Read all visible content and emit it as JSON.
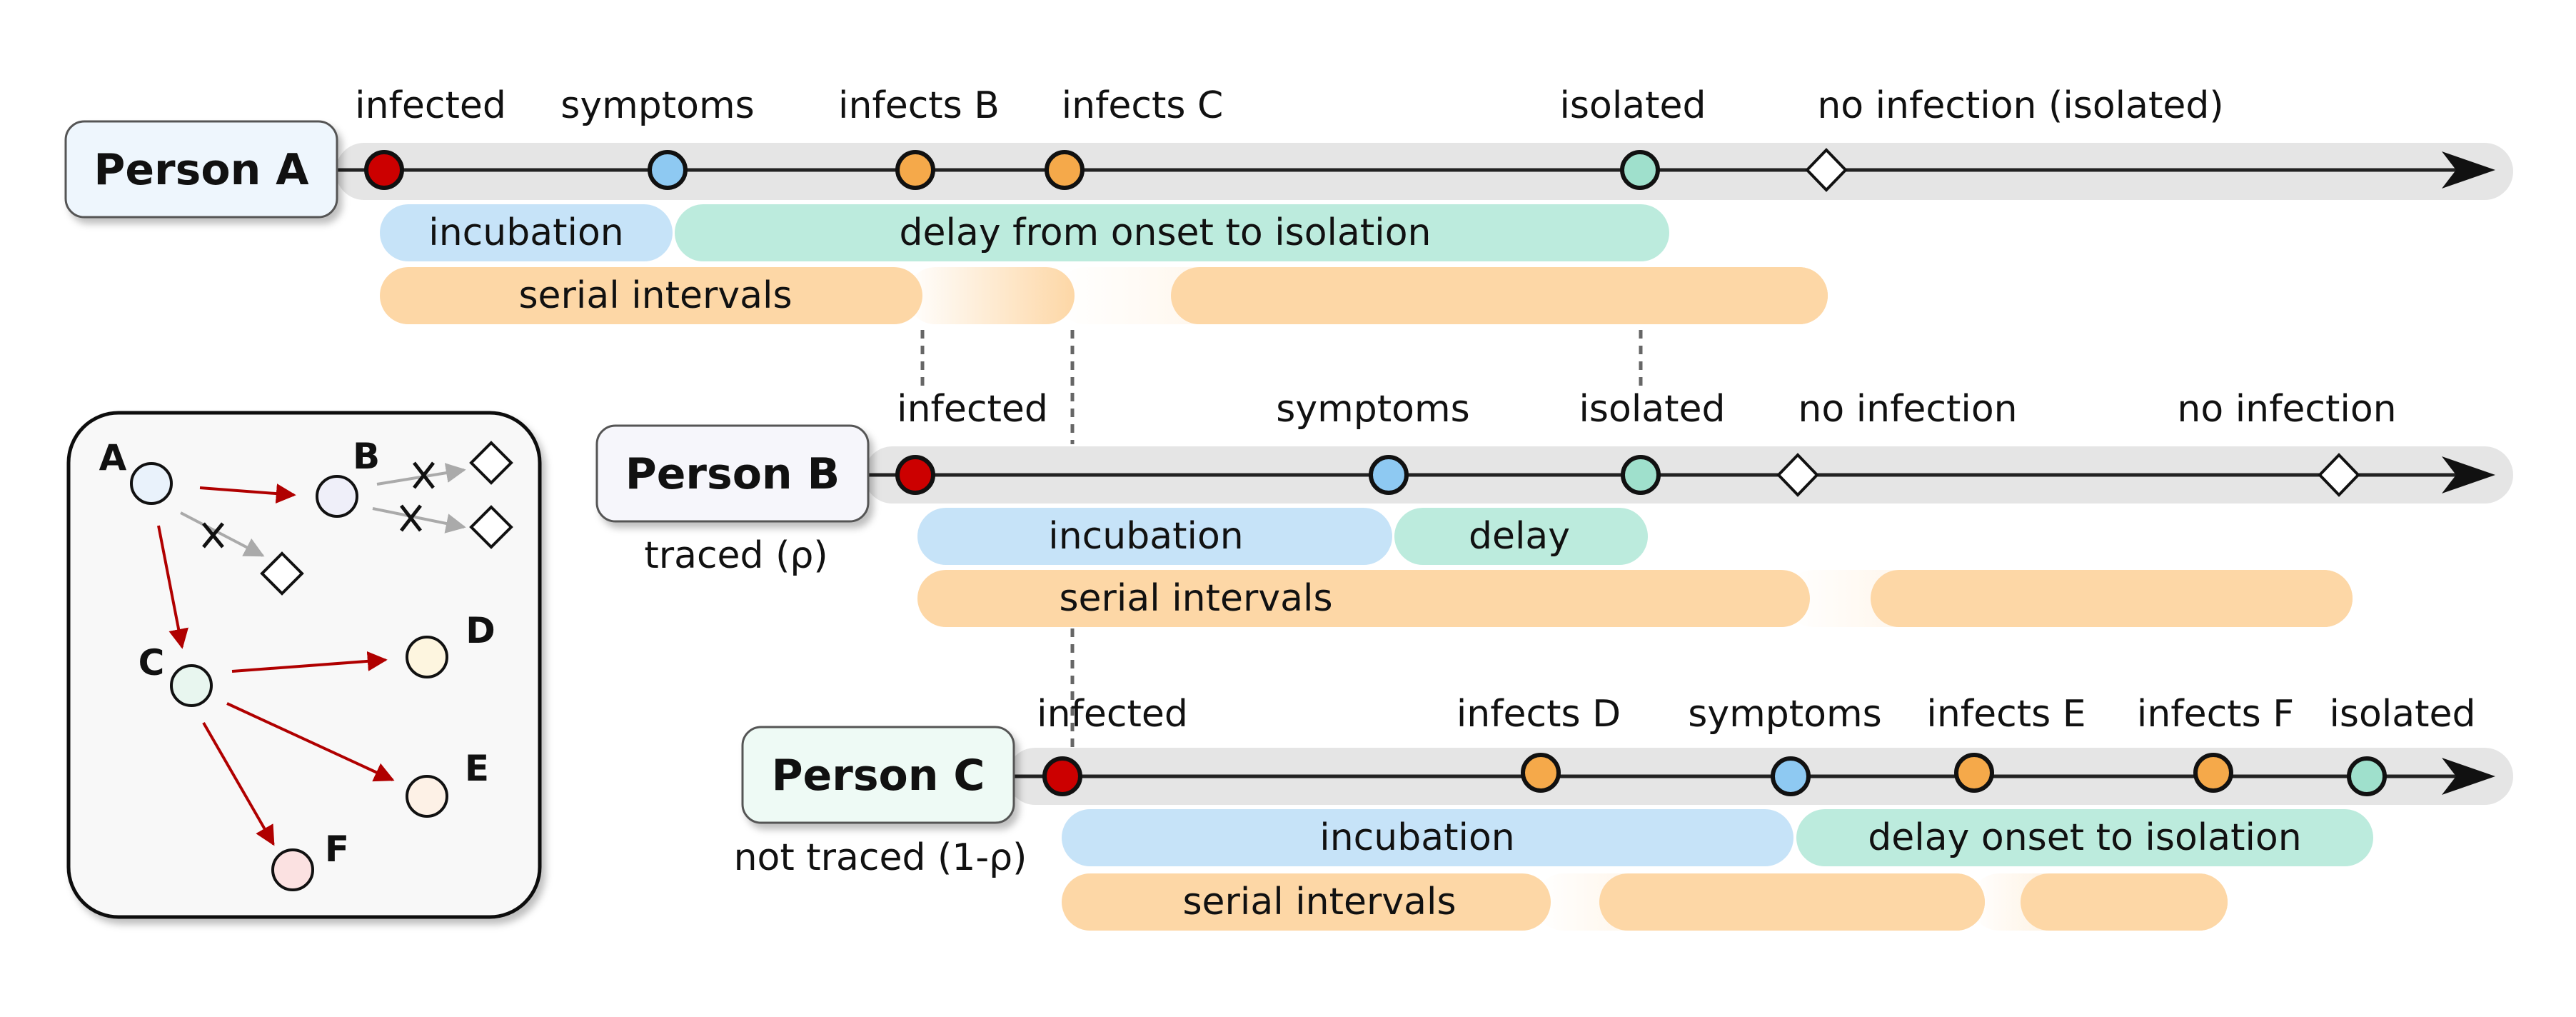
{
  "colors": {
    "infected": "#cc0000",
    "symptoms": "#8ec9f2",
    "infects": "#f5a94a",
    "isolated": "#9fe0cc",
    "incubation_bar": "#c6e3f8",
    "delay_bar": "#bcebdd",
    "serial_bar": "#fdd7a6",
    "track": "#e5e5e5"
  },
  "persons": [
    {
      "name": "Person A",
      "subtitle": "",
      "events": [
        {
          "label": "infected",
          "type": "infected"
        },
        {
          "label": "symptoms",
          "type": "symptoms"
        },
        {
          "label": "infects B",
          "type": "infects"
        },
        {
          "label": "infects C",
          "type": "infects"
        },
        {
          "label": "isolated",
          "type": "isolated"
        },
        {
          "label": "no infection (isolated)",
          "type": "none"
        }
      ],
      "bars": [
        {
          "label": "incubation",
          "kind": "incubation"
        },
        {
          "label": "delay from onset to isolation",
          "kind": "delay"
        },
        {
          "label": "serial intervals",
          "kind": "serial"
        }
      ]
    },
    {
      "name": "Person B",
      "subtitle": "traced (ρ)",
      "events": [
        {
          "label": "infected",
          "type": "infected"
        },
        {
          "label": "symptoms",
          "type": "symptoms"
        },
        {
          "label": "isolated",
          "type": "isolated"
        },
        {
          "label": "no infection",
          "type": "none"
        },
        {
          "label": "no infection",
          "type": "none"
        }
      ],
      "bars": [
        {
          "label": "incubation",
          "kind": "incubation"
        },
        {
          "label": "delay",
          "kind": "delay"
        },
        {
          "label": "serial intervals",
          "kind": "serial"
        }
      ]
    },
    {
      "name": "Person C",
      "subtitle": "not traced (1-ρ)",
      "events": [
        {
          "label": "infected",
          "type": "infected"
        },
        {
          "label": "infects D",
          "type": "infects"
        },
        {
          "label": "symptoms",
          "type": "symptoms"
        },
        {
          "label": "infects E",
          "type": "infects"
        },
        {
          "label": "infects F",
          "type": "infects"
        },
        {
          "label": "isolated",
          "type": "isolated"
        }
      ],
      "bars": [
        {
          "label": "incubation",
          "kind": "incubation"
        },
        {
          "label": "delay onset to isolation",
          "kind": "delay"
        },
        {
          "label": "serial intervals",
          "kind": "serial"
        }
      ]
    }
  ],
  "tree": {
    "nodes": [
      "A",
      "B",
      "C",
      "D",
      "E",
      "F"
    ],
    "infection_edges": [
      [
        "A",
        "B"
      ],
      [
        "A",
        "C"
      ],
      [
        "C",
        "D"
      ],
      [
        "C",
        "E"
      ],
      [
        "C",
        "F"
      ]
    ],
    "blocked_edges": [
      [
        "A",
        "none"
      ],
      [
        "B",
        "none"
      ],
      [
        "B",
        "none"
      ]
    ]
  }
}
